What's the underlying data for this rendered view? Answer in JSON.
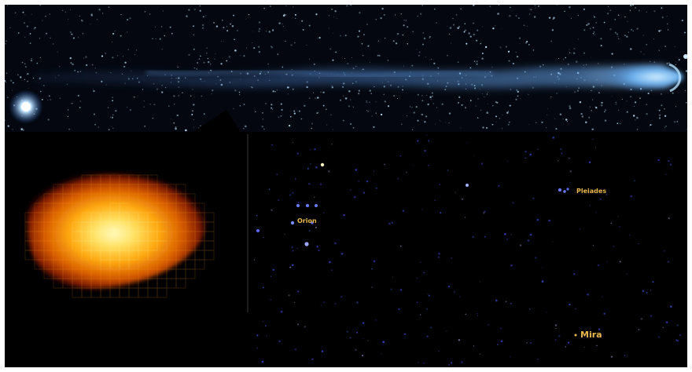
{
  "labels": {
    "orion": "Orion",
    "pleiades": "Pleiades",
    "mira": "Mira"
  },
  "colors": {
    "label": "#e8b84a",
    "tail": "#6aa6e6",
    "star_field": "#9aa8ff",
    "sky_background": "#000000",
    "glow_core": "#fff6a0",
    "glow_edge": "#8a1a00"
  }
}
